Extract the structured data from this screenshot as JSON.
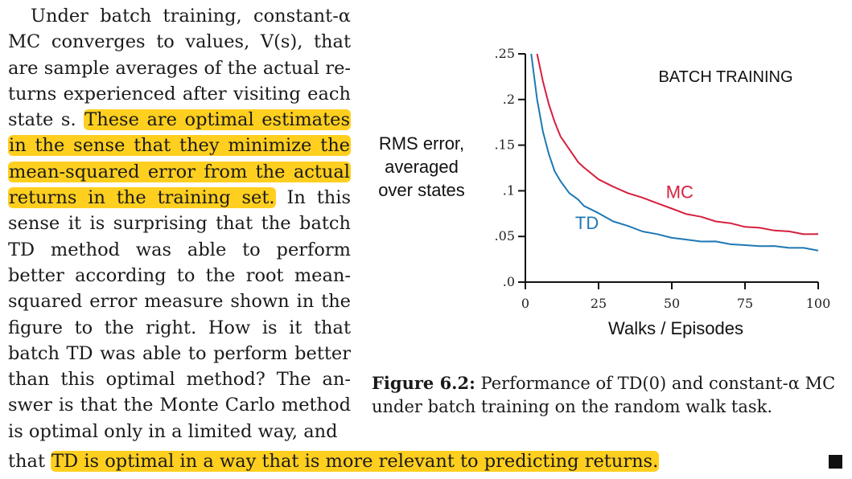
{
  "paragraph": {
    "lines": [
      {
        "text": "Under batch training, constant-α",
        "hl": false
      },
      {
        "text": "MC converges to values, V(s), that",
        "hl": false
      },
      {
        "text": "are sample averages of the actual re-",
        "hl": false
      },
      {
        "text": "turns experienced after visiting each",
        "hl": false
      },
      {
        "pre": "state s. ",
        "hltext": "These are optimal estimates"
      },
      {
        "hltext": "in the sense that they minimize the"
      },
      {
        "hltext": "mean-squared error from the actual"
      },
      {
        "hltext": "returns in the training set.",
        "post": " In this"
      },
      {
        "text": "sense it is surprising that the batch",
        "hl": false
      },
      {
        "text": "TD method was able to perform",
        "hl": false
      },
      {
        "text": "better according to the root mean-",
        "hl": false
      },
      {
        "text": "squared error measure shown in the",
        "hl": false
      },
      {
        "text": "figure to the right.  How is it that",
        "hl": false
      },
      {
        "text": "batch TD was able to perform better",
        "hl": false
      },
      {
        "text": "than this optimal method? The an-",
        "hl": false
      },
      {
        "text": "swer is that the Monte Carlo method",
        "hl": false
      },
      {
        "text": "is optimal only in a limited way, and",
        "hl": false
      }
    ],
    "final_pre": "that ",
    "final_highlight": "TD is optimal in a way that is more relevant to predicting returns."
  },
  "figure": {
    "caption_label": "Figure 6.2:",
    "caption_text": " Performance of TD(0) and constant-α MC under batch training on the random walk task.",
    "highlight_color": "#ffcf1f"
  },
  "chart_data": {
    "type": "line",
    "title": "BATCH TRAINING",
    "xlabel": "Walks / Episodes",
    "ylabel": "RMS error, averaged over states",
    "xlim": [
      0,
      100
    ],
    "ylim": [
      0,
      0.25
    ],
    "xticks": [
      0,
      25,
      50,
      75,
      100
    ],
    "yticks": [
      {
        "v": 0,
        "label": ".0"
      },
      {
        "v": 0.05,
        "label": ".05"
      },
      {
        "v": 0.1,
        "label": ".1"
      },
      {
        "v": 0.15,
        "label": ".15"
      },
      {
        "v": 0.2,
        "label": ".2"
      },
      {
        "v": 0.25,
        "label": ".25"
      }
    ],
    "grid": false,
    "series": [
      {
        "name": "MC",
        "color": "#d6203f",
        "x": [
          4,
          6,
          8,
          10,
          12,
          15,
          18,
          20,
          25,
          30,
          35,
          40,
          45,
          50,
          55,
          60,
          65,
          70,
          75,
          80,
          85,
          90,
          95,
          100
        ],
        "y": [
          0.25,
          0.22,
          0.195,
          0.175,
          0.16,
          0.145,
          0.132,
          0.125,
          0.113,
          0.104,
          0.098,
          0.092,
          0.087,
          0.08,
          0.075,
          0.071,
          0.067,
          0.064,
          0.061,
          0.059,
          0.057,
          0.055,
          0.053,
          0.052
        ]
      },
      {
        "name": "TD",
        "color": "#1f78b4",
        "x": [
          2,
          4,
          6,
          8,
          10,
          12,
          15,
          18,
          20,
          25,
          30,
          35,
          40,
          45,
          50,
          55,
          60,
          65,
          70,
          75,
          80,
          85,
          90,
          95,
          100
        ],
        "y": [
          0.25,
          0.2,
          0.165,
          0.14,
          0.122,
          0.11,
          0.098,
          0.09,
          0.084,
          0.075,
          0.067,
          0.061,
          0.056,
          0.052,
          0.049,
          0.046,
          0.045,
          0.044,
          0.042,
          0.04,
          0.04,
          0.039,
          0.038,
          0.037,
          0.035
        ]
      }
    ],
    "annotations": [
      {
        "text": "MC",
        "x": 48,
        "y": 0.092,
        "color": "#d6203f"
      },
      {
        "text": "TD",
        "x": 17,
        "y": 0.058,
        "color": "#1f78b4"
      }
    ]
  }
}
